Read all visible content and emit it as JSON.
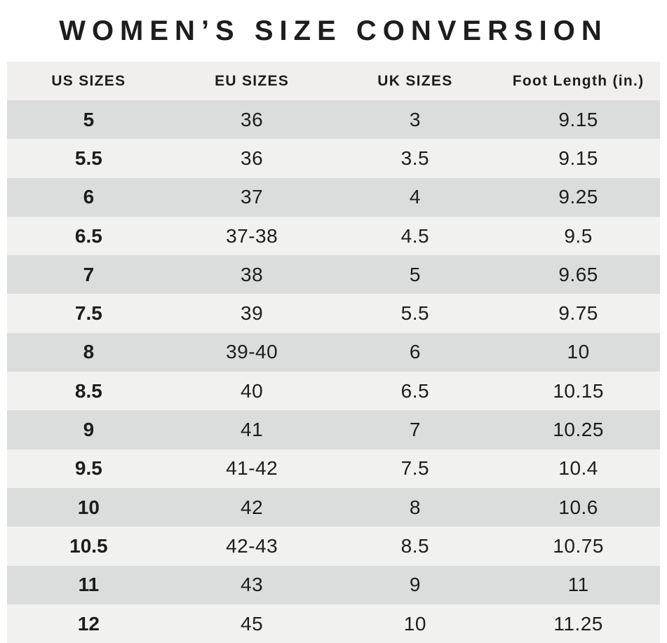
{
  "title": "WOMEN’S SIZE CONVERSION",
  "chart_data": {
    "type": "table",
    "title": "WOMEN’S SIZE CONVERSION",
    "columns": [
      "US SIZES",
      "EU SIZES",
      "UK SIZES",
      "Foot Length (in.)"
    ],
    "rows": [
      [
        "5",
        "36",
        "3",
        "9.15"
      ],
      [
        "5.5",
        "36",
        "3.5",
        "9.15"
      ],
      [
        "6",
        "37",
        "4",
        "9.25"
      ],
      [
        "6.5",
        "37-38",
        "4.5",
        "9.5"
      ],
      [
        "7",
        "38",
        "5",
        "9.65"
      ],
      [
        "7.5",
        "39",
        "5.5",
        "9.75"
      ],
      [
        "8",
        "39-40",
        "6",
        "10"
      ],
      [
        "8.5",
        "40",
        "6.5",
        "10.15"
      ],
      [
        "9",
        "41",
        "7",
        "10.25"
      ],
      [
        "9.5",
        "41-42",
        "7.5",
        "10.4"
      ],
      [
        "10",
        "42",
        "8",
        "10.6"
      ],
      [
        "10.5",
        "42-43",
        "8.5",
        "10.75"
      ],
      [
        "11",
        "43",
        "9",
        "11"
      ],
      [
        "12",
        "45",
        "10",
        "11.25"
      ]
    ]
  },
  "colors": {
    "header_bg": "#f0efee",
    "row_dark": "#dbdcdc",
    "row_light": "#f1f1f0",
    "text": "#1d1d1d"
  }
}
